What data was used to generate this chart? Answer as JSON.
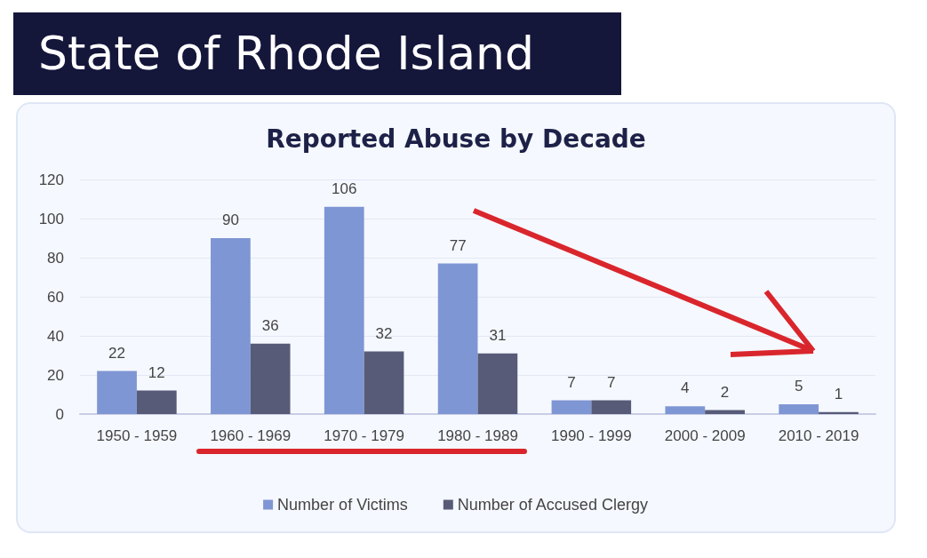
{
  "chart_data": {
    "type": "bar",
    "title": "State of Rhode Island",
    "subtitle": "Reported Abuse by Decade",
    "categories": [
      "1950 - 1959",
      "1960 - 1969",
      "1970 - 1979",
      "1980 - 1989",
      "1990 - 1999",
      "2000 - 2009",
      "2010 - 2019"
    ],
    "series": [
      {
        "name": "Number of Victims",
        "color": "#7f96d4",
        "values": [
          22,
          90,
          106,
          77,
          7,
          4,
          5
        ]
      },
      {
        "name": "Number of Accused Clergy",
        "color": "#575b78",
        "values": [
          12,
          36,
          32,
          31,
          7,
          2,
          1
        ]
      }
    ],
    "ylim": [
      0,
      120
    ],
    "yticks": [
      0,
      20,
      40,
      60,
      80,
      100,
      120
    ],
    "grid": "y",
    "legend": "bottom",
    "data_labels": true
  }
}
